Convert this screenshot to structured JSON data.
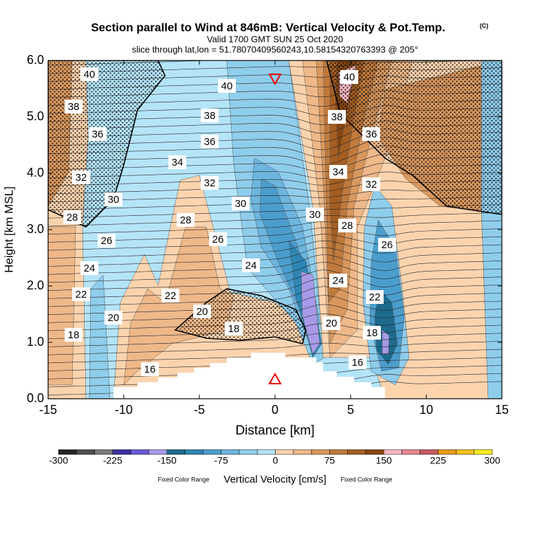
{
  "chart_data": {
    "type": "contour",
    "title": "Section parallel to Wind at 846mB: Vertical Velocity & Pot.Temp.",
    "title_mark": "(C)",
    "subtitle": [
      "Valid 1700 GMT SUN 25 Oct 2020",
      "slice through lat,lon = 51.78070409560243,10.58154320763393 @ 205°"
    ],
    "x_label": "Distance [km]",
    "y_label": "Height [km MSL]",
    "xlim": [
      -15,
      15
    ],
    "xticks": [
      -15,
      -10,
      -5,
      0,
      5,
      10,
      15
    ],
    "ylim": [
      0,
      6
    ],
    "yticks": [
      {
        "value": 0,
        "label": "0.0"
      },
      {
        "value": 1,
        "label": "1.0"
      },
      {
        "value": 2,
        "label": "2.0"
      },
      {
        "value": 3,
        "label": "3.0"
      },
      {
        "value": 4,
        "label": "4.0"
      },
      {
        "value": 5,
        "label": "5.0"
      },
      {
        "value": 6,
        "label": "6.0"
      }
    ],
    "colorbar": {
      "label": "Vertical Velocity [cm/s]",
      "note": "Fixed Color Range",
      "levels": [
        -300,
        -275,
        -250,
        -225,
        -200,
        -175,
        -150,
        -125,
        -100,
        -75,
        -50,
        -25,
        0,
        25,
        50,
        75,
        100,
        125,
        150,
        175,
        200,
        225,
        250,
        275,
        300
      ],
      "ticks": [
        -300,
        -225,
        -150,
        -75,
        0,
        75,
        150,
        225,
        300
      ],
      "colors": [
        "#262626",
        "#4f4f4f",
        "#7a7a7a",
        "#3b2f9e",
        "#6a5bd6",
        "#a89ae8",
        "#1d6a8e",
        "#2f86b4",
        "#4b9dcd",
        "#6cb5de",
        "#8fcdec",
        "#b4e4f8",
        "#fbd4ae",
        "#eeb888",
        "#d9985e",
        "#c07a3c",
        "#a45e22",
        "#87460f",
        "#f5b7c2",
        "#e6878f",
        "#c75a63",
        "#e89a18",
        "#f2c21a",
        "#f8ea20"
      ]
    },
    "contour_labels": [
      40,
      38,
      36,
      32,
      30,
      28,
      26,
      24,
      22,
      20,
      18,
      40,
      38,
      36,
      34,
      32,
      30,
      28,
      26,
      24,
      22,
      20,
      18,
      16,
      40,
      38,
      36,
      34,
      32,
      30,
      28,
      26,
      24,
      22,
      20,
      18,
      16
    ]
  }
}
